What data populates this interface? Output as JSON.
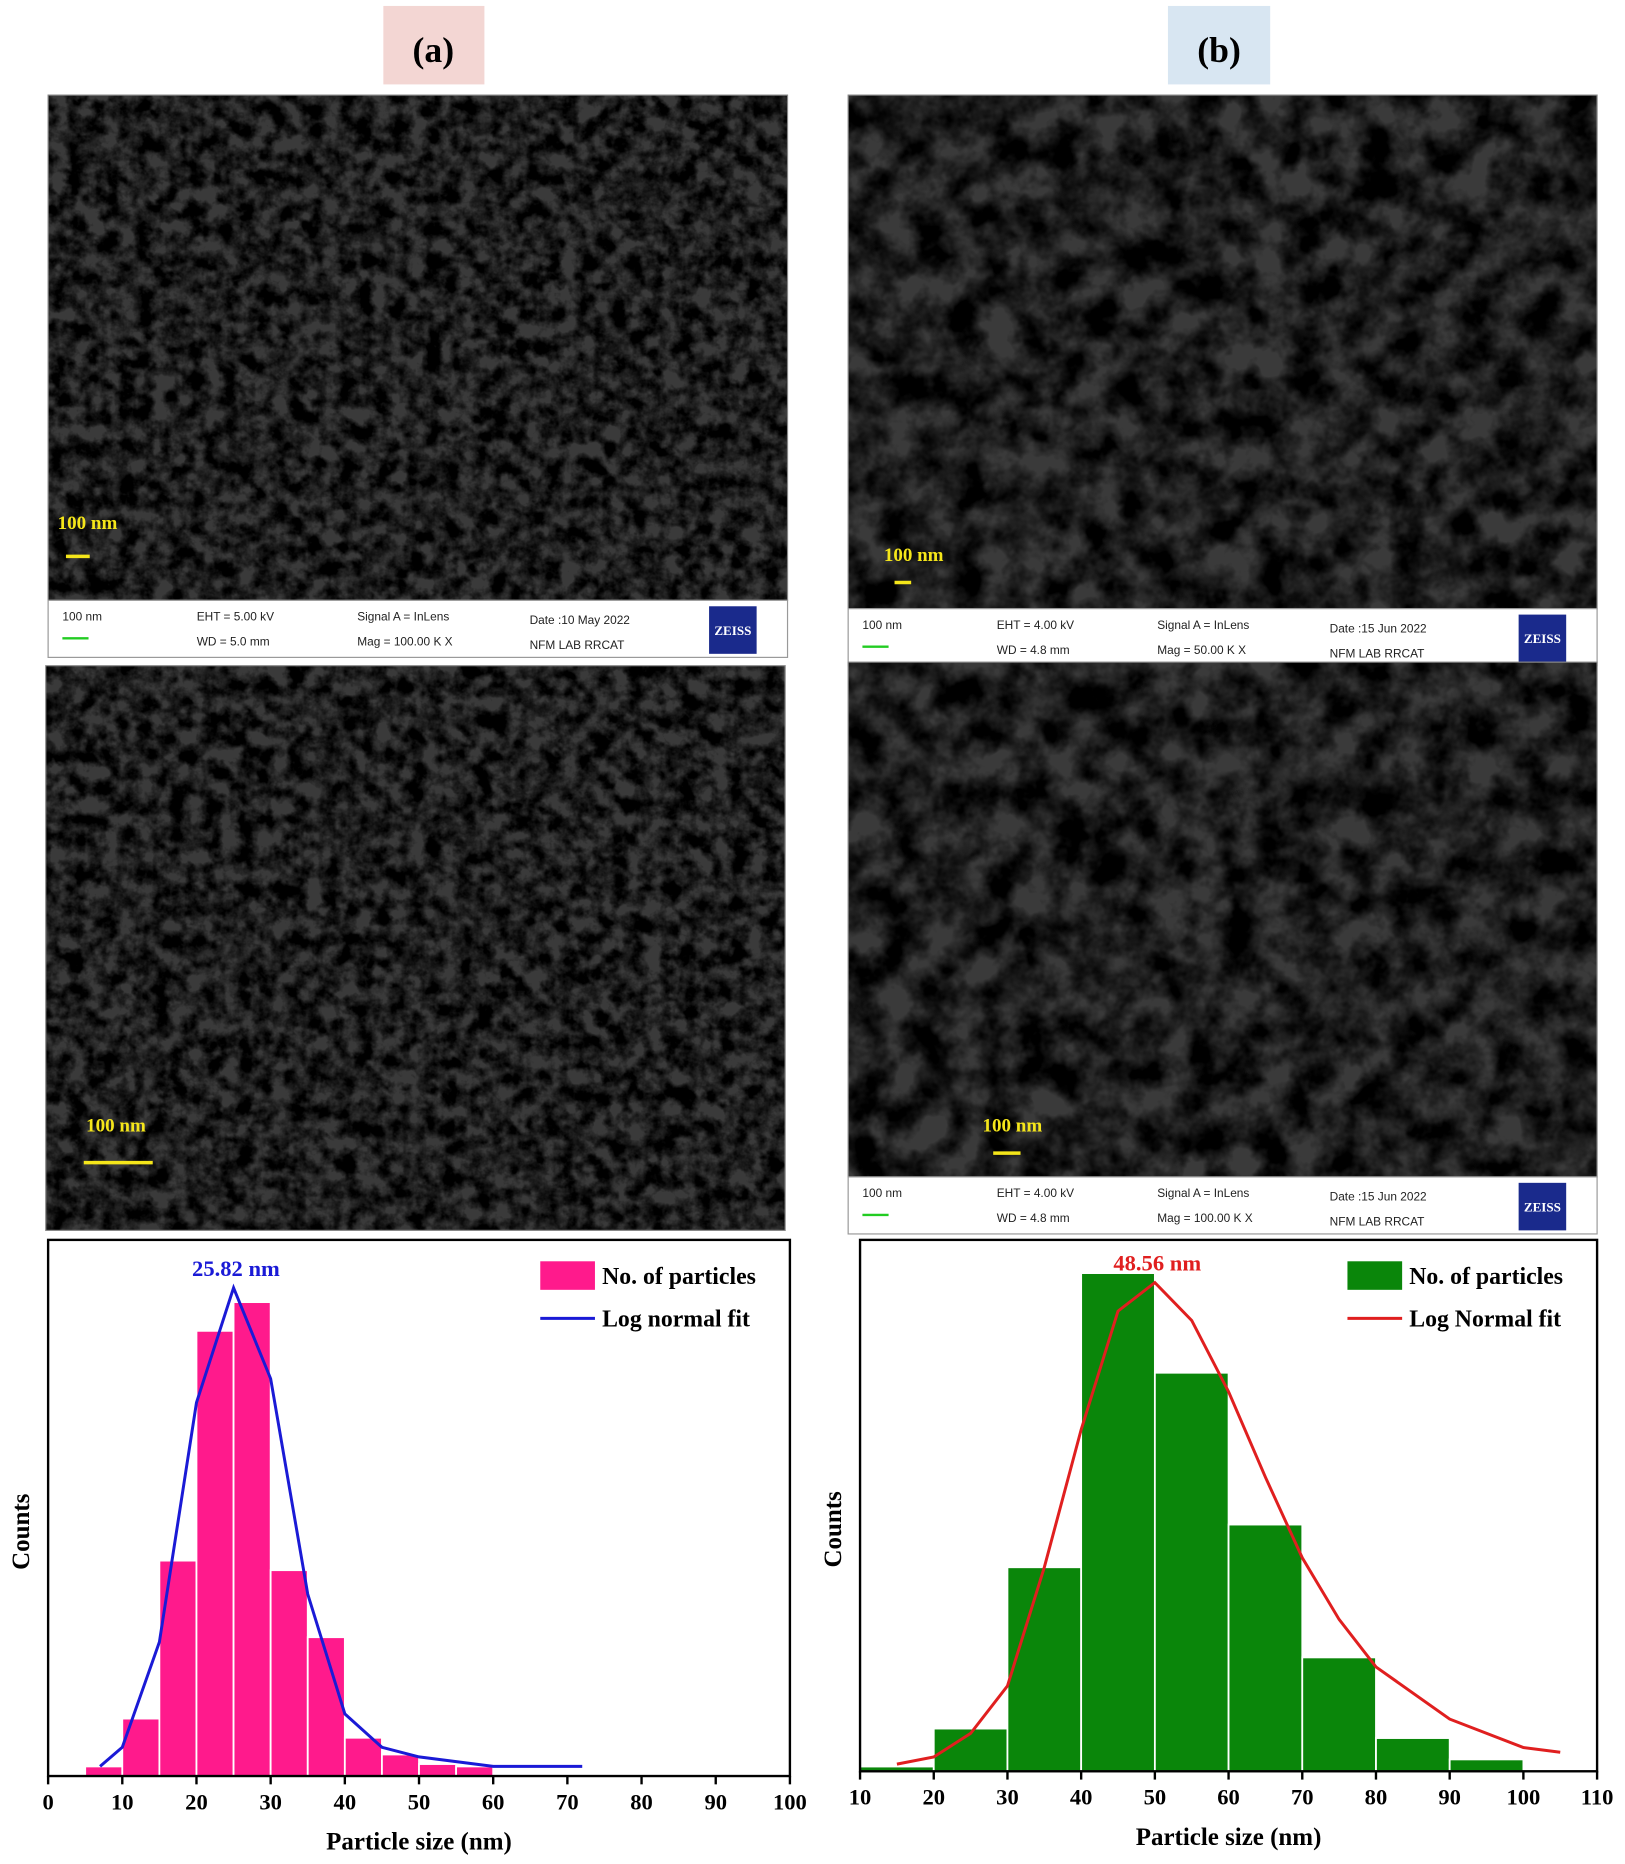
{
  "panels": [
    {
      "label": "(a)",
      "images": [
        {
          "scale": "100 nm",
          "info": {
            "scale": "100 nm",
            "eht": "EHT = 5.00 kV",
            "wd": "WD = 5.0 mm",
            "signal": "Signal A = InLens",
            "mag": "Mag = 100.00 K X",
            "date": "Date :10 May 2022",
            "lab": "NFM LAB RRCAT",
            "logo": "ZEISS"
          }
        },
        {
          "scale": "100 nm"
        }
      ]
    },
    {
      "label": "(b)",
      "images": [
        {
          "scale": "100 nm",
          "info": {
            "scale": "100 nm",
            "eht": "EHT = 4.00 kV",
            "wd": "WD = 4.8 mm",
            "signal": "Signal A = InLens",
            "mag": "Mag = 50.00 K X",
            "date": "Date :15 Jun 2022",
            "lab": "NFM LAB RRCAT",
            "logo": "ZEISS"
          }
        },
        {
          "scale": "100 nm",
          "info": {
            "scale": "100 nm",
            "eht": "EHT = 4.00 kV",
            "wd": "WD = 4.8 mm",
            "signal": "Signal A = InLens",
            "mag": "Mag = 100.00 K X",
            "date": "Date :15 Jun 2022",
            "lab": "NFM LAB RRCAT",
            "logo": "ZEISS"
          }
        }
      ]
    }
  ],
  "chart_data": [
    {
      "type": "histogram",
      "xlabel": "Particle size (nm)",
      "ylabel": "Counts",
      "name": "No. of particles",
      "color": "#ff1a8c",
      "bins": [
        5,
        10,
        15,
        20,
        25,
        30,
        35,
        40,
        45,
        50,
        55,
        60
      ],
      "values": [
        2,
        12,
        45,
        93,
        99,
        43,
        29,
        8,
        4.5,
        2.5,
        2
      ],
      "fit": {
        "name": "Log normal fit",
        "color": "#1a1ad6",
        "x": [
          7,
          10,
          15,
          20,
          25,
          30,
          35,
          40,
          45,
          50,
          55,
          60,
          65,
          72
        ],
        "values": [
          2,
          6,
          28,
          78,
          102,
          83,
          38,
          13,
          6,
          4,
          3,
          2,
          2,
          2
        ]
      },
      "annotation": {
        "text": "25.82 nm",
        "color": "#1a1ad6"
      },
      "xlim": [
        0,
        100
      ],
      "xticks": [
        0,
        10,
        20,
        30,
        40,
        50,
        60,
        70,
        80,
        90,
        100
      ],
      "ylim": [
        0,
        112
      ],
      "legend": "upper right"
    },
    {
      "type": "histogram",
      "xlabel": "Particle size (nm)",
      "ylabel": "Counts",
      "name": "No. of particles",
      "color": "#0a860a",
      "bins": [
        10,
        20,
        30,
        40,
        50,
        60,
        70,
        80,
        90,
        100
      ],
      "values": [
        1,
        9,
        43,
        105,
        84,
        52,
        24,
        7,
        2.5
      ],
      "fit": {
        "name": "Log Normal fit",
        "color": "#e01f1f",
        "x": [
          15,
          20,
          25,
          30,
          35,
          40,
          45,
          50,
          55,
          60,
          65,
          70,
          75,
          80,
          90,
          100,
          105
        ],
        "values": [
          1.5,
          3,
          8,
          18,
          43,
          72,
          97,
          103,
          95,
          80,
          62,
          45,
          32,
          22,
          11,
          5,
          4
        ]
      },
      "annotation": {
        "text": "48.56 nm",
        "color": "#e01f1f"
      },
      "xlim": [
        10,
        110
      ],
      "xticks": [
        10,
        20,
        30,
        40,
        50,
        60,
        70,
        80,
        90,
        100,
        110
      ],
      "ylim": [
        0,
        112
      ],
      "legend": "upper right"
    }
  ]
}
